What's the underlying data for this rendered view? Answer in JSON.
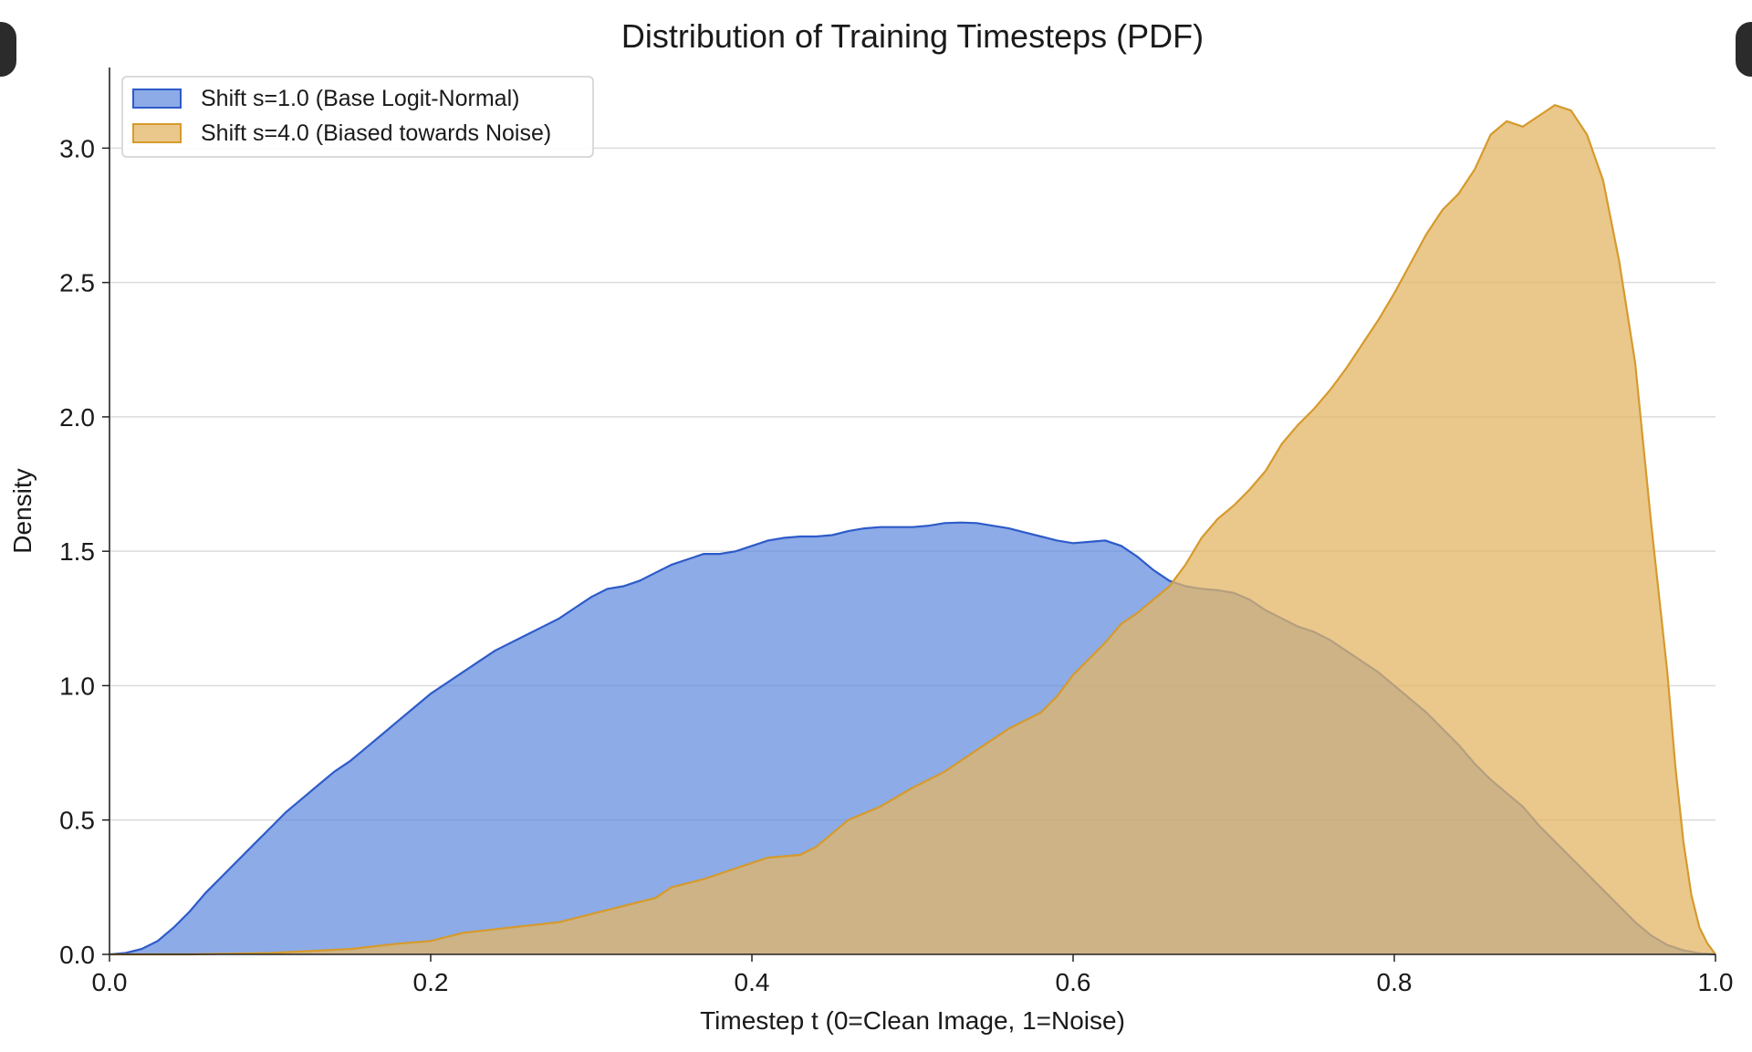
{
  "chart_data": {
    "type": "area",
    "title": "Distribution of Training Timesteps (PDF)",
    "xlabel": "Timestep t (0=Clean Image, 1=Noise)",
    "ylabel": "Density",
    "xlim": [
      0.0,
      1.0
    ],
    "ylim": [
      0.0,
      3.3
    ],
    "xticks": [
      0.0,
      0.2,
      0.4,
      0.6,
      0.8,
      1.0
    ],
    "xtick_labels": [
      "0.0",
      "0.2",
      "0.4",
      "0.6",
      "0.8",
      "1.0"
    ],
    "yticks": [
      0.0,
      0.5,
      1.0,
      1.5,
      2.0,
      2.5,
      3.0
    ],
    "ytick_labels": [
      "0.0",
      "0.5",
      "1.0",
      "1.5",
      "2.0",
      "2.5",
      "3.0"
    ],
    "grid": "horizontal",
    "legend_position": "top-left",
    "series": [
      {
        "name": "Shift s=1.0 (Base Logit-Normal)",
        "fill_color": "#5b87dd",
        "line_color": "#2e5bc9",
        "fill_opacity": 0.7,
        "points": [
          [
            0.0,
            0.0
          ],
          [
            0.01,
            0.005
          ],
          [
            0.02,
            0.02
          ],
          [
            0.03,
            0.05
          ],
          [
            0.04,
            0.1
          ],
          [
            0.05,
            0.16
          ],
          [
            0.06,
            0.23
          ],
          [
            0.07,
            0.29
          ],
          [
            0.08,
            0.35
          ],
          [
            0.09,
            0.41
          ],
          [
            0.1,
            0.47
          ],
          [
            0.11,
            0.53
          ],
          [
            0.12,
            0.58
          ],
          [
            0.13,
            0.63
          ],
          [
            0.14,
            0.68
          ],
          [
            0.15,
            0.72
          ],
          [
            0.16,
            0.77
          ],
          [
            0.17,
            0.82
          ],
          [
            0.18,
            0.87
          ],
          [
            0.19,
            0.92
          ],
          [
            0.2,
            0.97
          ],
          [
            0.21,
            1.01
          ],
          [
            0.22,
            1.05
          ],
          [
            0.23,
            1.09
          ],
          [
            0.24,
            1.13
          ],
          [
            0.25,
            1.16
          ],
          [
            0.26,
            1.19
          ],
          [
            0.27,
            1.22
          ],
          [
            0.28,
            1.25
          ],
          [
            0.29,
            1.29
          ],
          [
            0.3,
            1.33
          ],
          [
            0.31,
            1.36
          ],
          [
            0.32,
            1.37
          ],
          [
            0.33,
            1.39
          ],
          [
            0.34,
            1.42
          ],
          [
            0.35,
            1.45
          ],
          [
            0.36,
            1.47
          ],
          [
            0.37,
            1.49
          ],
          [
            0.38,
            1.49
          ],
          [
            0.39,
            1.5
          ],
          [
            0.4,
            1.52
          ],
          [
            0.41,
            1.54
          ],
          [
            0.42,
            1.55
          ],
          [
            0.43,
            1.555
          ],
          [
            0.44,
            1.555
          ],
          [
            0.45,
            1.56
          ],
          [
            0.46,
            1.575
          ],
          [
            0.47,
            1.585
          ],
          [
            0.48,
            1.59
          ],
          [
            0.49,
            1.59
          ],
          [
            0.5,
            1.59
          ],
          [
            0.51,
            1.595
          ],
          [
            0.52,
            1.605
          ],
          [
            0.53,
            1.607
          ],
          [
            0.54,
            1.605
          ],
          [
            0.55,
            1.595
          ],
          [
            0.56,
            1.585
          ],
          [
            0.57,
            1.57
          ],
          [
            0.58,
            1.555
          ],
          [
            0.59,
            1.54
          ],
          [
            0.6,
            1.53
          ],
          [
            0.61,
            1.535
          ],
          [
            0.62,
            1.54
          ],
          [
            0.63,
            1.52
          ],
          [
            0.64,
            1.48
          ],
          [
            0.65,
            1.43
          ],
          [
            0.66,
            1.39
          ],
          [
            0.67,
            1.37
          ],
          [
            0.68,
            1.36
          ],
          [
            0.69,
            1.355
          ],
          [
            0.7,
            1.345
          ],
          [
            0.71,
            1.32
          ],
          [
            0.72,
            1.28
          ],
          [
            0.73,
            1.25
          ],
          [
            0.74,
            1.22
          ],
          [
            0.75,
            1.2
          ],
          [
            0.76,
            1.17
          ],
          [
            0.77,
            1.13
          ],
          [
            0.78,
            1.09
          ],
          [
            0.79,
            1.05
          ],
          [
            0.8,
            1.0
          ],
          [
            0.81,
            0.95
          ],
          [
            0.82,
            0.9
          ],
          [
            0.83,
            0.84
          ],
          [
            0.84,
            0.78
          ],
          [
            0.85,
            0.71
          ],
          [
            0.86,
            0.65
          ],
          [
            0.87,
            0.6
          ],
          [
            0.88,
            0.55
          ],
          [
            0.89,
            0.48
          ],
          [
            0.9,
            0.42
          ],
          [
            0.91,
            0.36
          ],
          [
            0.92,
            0.3
          ],
          [
            0.93,
            0.24
          ],
          [
            0.94,
            0.18
          ],
          [
            0.95,
            0.12
          ],
          [
            0.96,
            0.07
          ],
          [
            0.97,
            0.035
          ],
          [
            0.98,
            0.015
          ],
          [
            0.99,
            0.004
          ],
          [
            1.0,
            0.0
          ]
        ]
      },
      {
        "name": "Shift s=4.0 (Biased towards Noise)",
        "fill_color": "#e3b665",
        "line_color": "#d69a2c",
        "fill_opacity": 0.75,
        "points": [
          [
            0.0,
            0.0
          ],
          [
            0.05,
            0.0
          ],
          [
            0.1,
            0.005
          ],
          [
            0.15,
            0.02
          ],
          [
            0.18,
            0.04
          ],
          [
            0.2,
            0.05
          ],
          [
            0.22,
            0.08
          ],
          [
            0.25,
            0.1
          ],
          [
            0.28,
            0.12
          ],
          [
            0.3,
            0.15
          ],
          [
            0.32,
            0.18
          ],
          [
            0.34,
            0.21
          ],
          [
            0.35,
            0.25
          ],
          [
            0.37,
            0.28
          ],
          [
            0.39,
            0.32
          ],
          [
            0.41,
            0.36
          ],
          [
            0.43,
            0.37
          ],
          [
            0.44,
            0.4
          ],
          [
            0.46,
            0.5
          ],
          [
            0.48,
            0.55
          ],
          [
            0.5,
            0.62
          ],
          [
            0.52,
            0.68
          ],
          [
            0.54,
            0.76
          ],
          [
            0.56,
            0.84
          ],
          [
            0.58,
            0.9
          ],
          [
            0.59,
            0.96
          ],
          [
            0.6,
            1.04
          ],
          [
            0.61,
            1.1
          ],
          [
            0.62,
            1.16
          ],
          [
            0.63,
            1.23
          ],
          [
            0.64,
            1.27
          ],
          [
            0.65,
            1.32
          ],
          [
            0.66,
            1.37
          ],
          [
            0.67,
            1.45
          ],
          [
            0.68,
            1.55
          ],
          [
            0.69,
            1.62
          ],
          [
            0.7,
            1.67
          ],
          [
            0.71,
            1.73
          ],
          [
            0.72,
            1.8
          ],
          [
            0.73,
            1.9
          ],
          [
            0.74,
            1.97
          ],
          [
            0.75,
            2.03
          ],
          [
            0.76,
            2.1
          ],
          [
            0.77,
            2.18
          ],
          [
            0.78,
            2.27
          ],
          [
            0.79,
            2.36
          ],
          [
            0.8,
            2.46
          ],
          [
            0.81,
            2.57
          ],
          [
            0.82,
            2.68
          ],
          [
            0.83,
            2.77
          ],
          [
            0.84,
            2.83
          ],
          [
            0.85,
            2.92
          ],
          [
            0.86,
            3.05
          ],
          [
            0.87,
            3.1
          ],
          [
            0.88,
            3.08
          ],
          [
            0.89,
            3.12
          ],
          [
            0.9,
            3.16
          ],
          [
            0.91,
            3.14
          ],
          [
            0.92,
            3.05
          ],
          [
            0.93,
            2.88
          ],
          [
            0.94,
            2.58
          ],
          [
            0.95,
            2.2
          ],
          [
            0.96,
            1.6
          ],
          [
            0.97,
            1.05
          ],
          [
            0.975,
            0.7
          ],
          [
            0.98,
            0.42
          ],
          [
            0.985,
            0.22
          ],
          [
            0.99,
            0.1
          ],
          [
            0.995,
            0.04
          ],
          [
            1.0,
            0.0
          ]
        ]
      }
    ]
  }
}
